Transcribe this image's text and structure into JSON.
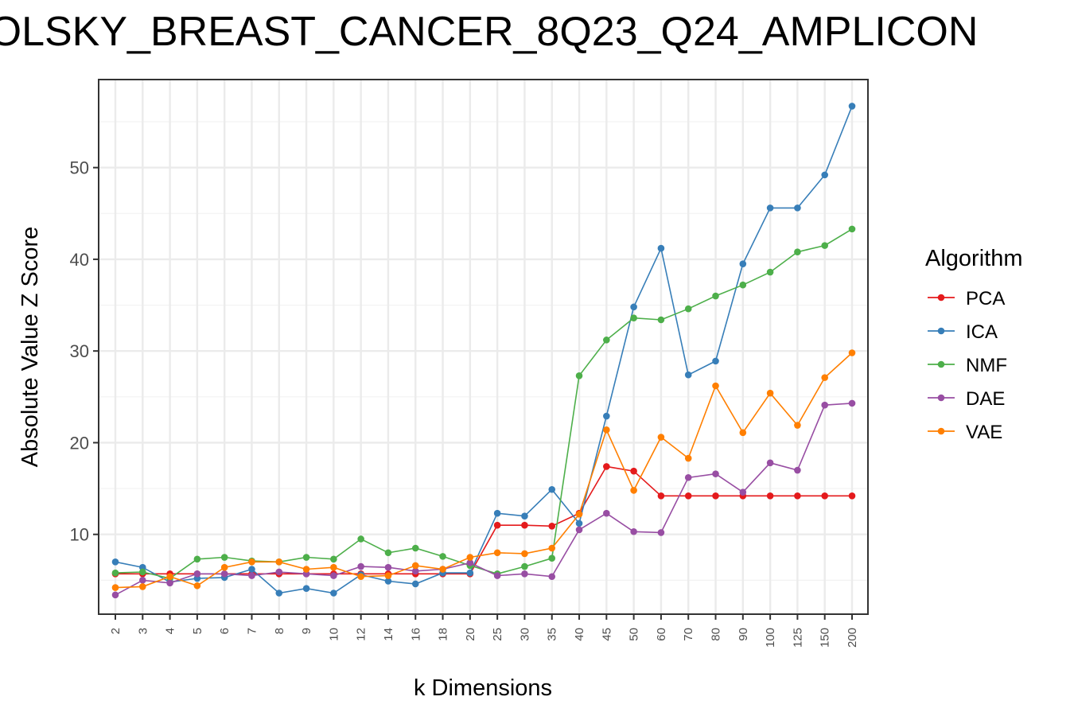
{
  "chart_data": {
    "type": "line",
    "title": "OLSKY_BREAST_CANCER_8Q23_Q24_AMPLICON",
    "xlabel": "k Dimensions",
    "ylabel": "Absolute Value Z Score",
    "categories": [
      "2",
      "3",
      "4",
      "5",
      "6",
      "7",
      "8",
      "9",
      "10",
      "12",
      "14",
      "16",
      "18",
      "20",
      "25",
      "30",
      "35",
      "40",
      "45",
      "50",
      "60",
      "70",
      "80",
      "90",
      "100",
      "125",
      "150",
      "200"
    ],
    "yticks": [
      10,
      20,
      30,
      40,
      50
    ],
    "ylim": [
      1.3,
      59.6
    ],
    "grid": true,
    "legend": {
      "title": "Algorithm",
      "position": "right"
    },
    "series": [
      {
        "name": "PCA",
        "color": "#E41A1C",
        "values": [
          5.7,
          5.7,
          5.7,
          5.7,
          5.7,
          5.7,
          5.7,
          5.7,
          5.7,
          5.7,
          5.7,
          5.7,
          5.7,
          5.7,
          11.0,
          11.0,
          10.9,
          12.3,
          17.4,
          16.9,
          14.2,
          14.2,
          14.2,
          14.2,
          14.2,
          14.2,
          14.2,
          14.2
        ]
      },
      {
        "name": "ICA",
        "color": "#377EB8",
        "values": [
          7.0,
          6.4,
          4.8,
          5.2,
          5.3,
          6.2,
          3.6,
          4.1,
          3.6,
          5.6,
          4.9,
          4.6,
          5.8,
          5.8,
          12.3,
          12.0,
          14.9,
          11.2,
          22.9,
          34.8,
          41.2,
          27.4,
          28.9,
          39.5,
          45.6,
          45.6,
          49.2,
          56.7
        ]
      },
      {
        "name": "NMF",
        "color": "#4DAF4A",
        "values": [
          5.8,
          5.9,
          5.2,
          7.3,
          7.5,
          7.1,
          7.0,
          7.5,
          7.3,
          9.5,
          8.0,
          8.5,
          7.6,
          6.6,
          5.7,
          6.5,
          7.4,
          27.3,
          31.2,
          33.6,
          33.4,
          34.6,
          36.0,
          37.2,
          38.6,
          40.8,
          41.5,
          43.3
        ]
      },
      {
        "name": "DAE",
        "color": "#984EA3",
        "values": [
          3.4,
          5.0,
          4.7,
          5.7,
          5.7,
          5.5,
          5.9,
          5.7,
          5.5,
          6.5,
          6.4,
          6.0,
          6.2,
          6.9,
          5.5,
          5.7,
          5.4,
          10.5,
          12.3,
          10.3,
          10.2,
          16.2,
          16.6,
          14.6,
          17.8,
          17.0,
          24.1,
          24.3
        ]
      },
      {
        "name": "VAE",
        "color": "#FF7F00",
        "values": [
          4.2,
          4.3,
          5.4,
          4.4,
          6.4,
          7.0,
          7.0,
          6.2,
          6.4,
          5.4,
          5.5,
          6.6,
          6.2,
          7.5,
          8.0,
          7.9,
          8.5,
          12.2,
          21.4,
          14.8,
          20.6,
          18.3,
          26.2,
          21.1,
          25.4,
          21.9,
          27.1,
          29.8
        ]
      }
    ]
  }
}
